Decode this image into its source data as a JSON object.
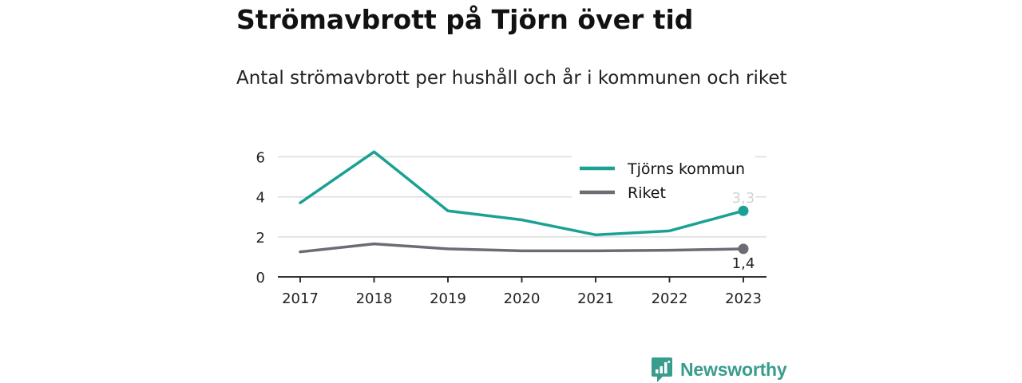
{
  "title": "Strömavbrott på Tjörn över tid",
  "subtitle": "Antal strömavbrott per hushåll och år i kommunen och riket",
  "brand": {
    "name": "Newsworthy",
    "color": "#3a9c8c",
    "icon": "bar-chart-badge-icon"
  },
  "chart_data": {
    "type": "line",
    "x": [
      "2017",
      "2018",
      "2019",
      "2020",
      "2021",
      "2022",
      "2023"
    ],
    "yticks": [
      "0",
      "2",
      "4",
      "6"
    ],
    "ylim": [
      0,
      6.5
    ],
    "grid": true,
    "legend_position": "top-right",
    "series": [
      {
        "name": "Tjörns kommun",
        "color": "#1aa193",
        "values": [
          3.7,
          6.25,
          3.3,
          2.85,
          2.1,
          2.3,
          3.3
        ],
        "end_label": "3,3"
      },
      {
        "name": "Riket",
        "color": "#6d6b74",
        "values": [
          1.25,
          1.65,
          1.4,
          1.3,
          1.3,
          1.33,
          1.4
        ],
        "end_label": "1,4"
      }
    ]
  }
}
